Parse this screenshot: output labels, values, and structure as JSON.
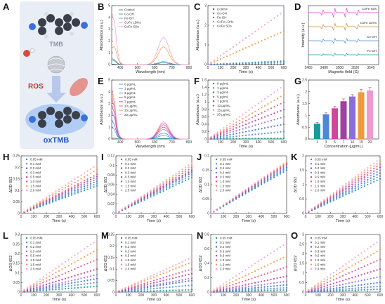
{
  "panel_a": {
    "tmb_label": "TMB",
    "ros_label": "ROS",
    "oxtmb_label": "oxTMB"
  },
  "panel_letters": [
    "A",
    "B",
    "C",
    "D",
    "E",
    "F",
    "G",
    "H",
    "I",
    "J",
    "K",
    "L",
    "M",
    "N",
    "O"
  ],
  "colors": {
    "four_series": [
      "#1a9a9a",
      "#4c88d8",
      "#f29a3a",
      "#f09ad0"
    ],
    "eight_series": [
      "#1a9a9a",
      "#4c88d8",
      "#3a6fd0",
      "#8a6fd8",
      "#c03a90",
      "#e0508f",
      "#f29a3a",
      "#f0a0d8"
    ],
    "g_bars": [
      "#1a9a9a",
      "#4c88d8",
      "#d0489a",
      "#a040a0",
      "#8a6fd8",
      "#f29a3a",
      "#f09ad0"
    ],
    "esr_lines": [
      "#e040d0",
      "#d08a40",
      "#4c88d8",
      "#1a9a9a"
    ]
  },
  "chart_data": [
    {
      "panel": "B",
      "type": "line",
      "xlabel": "Wavelength (nm)",
      "ylabel": "Absorbance (a.u.)",
      "xlim": [
        350,
        800
      ],
      "ylim": [
        0,
        5
      ],
      "xticks": [
        400,
        500,
        600,
        700,
        800
      ],
      "yticks": [
        0,
        1,
        2,
        3,
        4,
        5
      ],
      "series": [
        {
          "name": "Control",
          "peak652": 0.02,
          "peak370": 0.05
        },
        {
          "name": "Co-OH",
          "peak652": 0.15,
          "peak370": 0.45
        },
        {
          "name": "Fe-OH",
          "peak652": 0.25,
          "peak370": 0.55
        },
        {
          "name": "CoFe LDHs",
          "peak652": 1.5,
          "peak370": 1.35
        },
        {
          "name": "CoFe SDs",
          "peak652": 2.3,
          "peak370": 4.6
        }
      ]
    },
    {
      "panel": "C",
      "type": "scatter",
      "xlabel": "Time (s)",
      "ylabel": "Absorbance (a.u.)",
      "xlim": [
        0,
        600
      ],
      "ylim": [
        0,
        3
      ],
      "xticks": [
        0,
        100,
        200,
        300,
        400,
        500,
        600
      ],
      "yticks": [
        0,
        1,
        2,
        3
      ],
      "series": [
        {
          "name": "Control",
          "end": 0.02
        },
        {
          "name": "Co-OH",
          "end": 0.18
        },
        {
          "name": "Fe-OH",
          "end": 0.12
        },
        {
          "name": "CoFe LDHs",
          "end": 1.7
        },
        {
          "name": "CoFe SDs",
          "end": 2.7
        }
      ]
    },
    {
      "panel": "D",
      "type": "line",
      "xlabel": "Magnetic field (G)",
      "ylabel": "Intensity (a.u.)",
      "xlim": [
        3460,
        3550
      ],
      "xticks": [
        3460,
        3480,
        3500,
        3520,
        3540
      ],
      "series": [
        {
          "name": "CoFe SDs"
        },
        {
          "name": "CoFe LDHs"
        },
        {
          "name": "Co-OH"
        },
        {
          "name": "Fe-OH"
        }
      ]
    },
    {
      "panel": "E",
      "type": "line",
      "xlabel": "Wavelength (nm)",
      "ylabel": "Absorbance (a.u.)",
      "xlim": [
        350,
        800
      ],
      "ylim": [
        0,
        5
      ],
      "xticks": [
        400,
        500,
        600,
        700,
        800
      ],
      "yticks": [
        0,
        1,
        2,
        3,
        4,
        5
      ],
      "series": [
        {
          "name": "0 μg/mL",
          "peak652": 0.05,
          "peak370": 0.1
        },
        {
          "name": "1 μg/mL",
          "peak652": 0.3,
          "peak370": 1.2
        },
        {
          "name": "3 μg/mL",
          "peak652": 0.5,
          "peak370": 1.8
        },
        {
          "name": "5 μg/mL",
          "peak652": 0.8,
          "peak370": 2.6
        },
        {
          "name": "7 μg/mL",
          "peak652": 1.0,
          "peak370": 3.2
        },
        {
          "name": "10 μg/mL",
          "peak652": 1.2,
          "peak370": 3.9
        },
        {
          "name": "15 μg/mL",
          "peak652": 1.35,
          "peak370": 4.4
        },
        {
          "name": "20 μg/mL",
          "peak652": 1.45,
          "peak370": 4.8
        }
      ]
    },
    {
      "panel": "F",
      "type": "scatter",
      "xlabel": "Time (s)",
      "ylabel": "Absorbance (a.u.)",
      "xlim": [
        0,
        600
      ],
      "ylim": [
        0,
        1.6
      ],
      "xticks": [
        0,
        100,
        200,
        300,
        400,
        500,
        600
      ],
      "yticks": [
        0,
        0.2,
        0.4,
        0.6,
        0.8,
        1.0,
        1.2,
        1.4,
        1.6
      ],
      "series": [
        {
          "name": "0 μg/mL",
          "end": 0.02
        },
        {
          "name": "1 μg/mL",
          "end": 0.2
        },
        {
          "name": "3 μg/mL",
          "end": 0.4
        },
        {
          "name": "5 μg/mL",
          "end": 0.6
        },
        {
          "name": "7 μg/mL",
          "end": 0.8
        },
        {
          "name": "10 μg/mL",
          "end": 1.0
        },
        {
          "name": "15 μg/mL",
          "end": 1.2
        },
        {
          "name": "20 μg/mL",
          "end": 1.45
        }
      ]
    },
    {
      "panel": "G",
      "type": "bar",
      "xlabel": "Concentration (μg/mL)",
      "ylabel": "Absorbance (a.u.)",
      "ylim": [
        0,
        2.5
      ],
      "yticks": [
        0,
        0.5,
        1.0,
        1.5,
        2.0,
        2.5
      ],
      "categories": [
        "1",
        "3",
        "5",
        "7",
        "10",
        "15",
        "20"
      ],
      "values": [
        0.65,
        1.05,
        1.3,
        1.6,
        1.8,
        1.98,
        2.06
      ],
      "errors": [
        0.05,
        0.06,
        0.08,
        0.1,
        0.08,
        0.12,
        0.12
      ]
    },
    {
      "panel": "H",
      "type": "scatter",
      "xlabel": "Time (s)",
      "ylabel": "ΔOD 652",
      "xlim": [
        0,
        600
      ],
      "ylim": [
        0,
        0.25
      ],
      "xticks": [
        0,
        100,
        200,
        300,
        400,
        500,
        600
      ],
      "yticks": [
        0,
        0.05,
        0.1,
        0.15,
        0.2,
        0.25
      ],
      "series": [
        {
          "name": "0.05 mM",
          "end": 0.12
        },
        {
          "name": "0.1 mM",
          "end": 0.13
        },
        {
          "name": "0.2 mM",
          "end": 0.14
        },
        {
          "name": "0.3 mM",
          "end": 0.15
        },
        {
          "name": "0.5 mM",
          "end": 0.16
        },
        {
          "name": "1.0 mM",
          "end": 0.17
        },
        {
          "name": "1.5 mM",
          "end": 0.19
        },
        {
          "name": "2.0 mM",
          "end": 0.21
        }
      ]
    },
    {
      "panel": "I",
      "type": "scatter",
      "xlabel": "Time (s)",
      "ylabel": "ΔOD 652",
      "xlim": [
        0,
        600
      ],
      "ylim": [
        0,
        0.12
      ],
      "xticks": [
        0,
        100,
        200,
        300,
        400,
        500,
        600
      ],
      "yticks": [
        0,
        0.02,
        0.04,
        0.06,
        0.08,
        0.1,
        0.12
      ],
      "series": [
        {
          "name": "0.05 mM",
          "end": 0.075
        },
        {
          "name": "0.1 mM",
          "end": 0.08
        },
        {
          "name": "0.2 mM",
          "end": 0.085
        },
        {
          "name": "0.3 mM",
          "end": 0.088
        },
        {
          "name": "0.5 mM",
          "end": 0.09
        },
        {
          "name": "1.0 mM",
          "end": 0.095
        },
        {
          "name": "1.5 mM",
          "end": 0.1
        },
        {
          "name": "2.0 mM",
          "end": 0.105
        }
      ]
    },
    {
      "panel": "J",
      "type": "scatter",
      "xlabel": "Time (s)",
      "ylabel": "ΔOD 652",
      "xlim": [
        0,
        600
      ],
      "ylim": [
        0,
        0.2
      ],
      "xticks": [
        0,
        100,
        200,
        300,
        400,
        500,
        600
      ],
      "yticks": [
        0,
        0.05,
        0.1,
        0.15,
        0.2
      ],
      "series": [
        {
          "name": "0.05 mM",
          "end": 0.15
        },
        {
          "name": "0.1 mM",
          "end": 0.155
        },
        {
          "name": "0.2 mM",
          "end": 0.16
        },
        {
          "name": "0.3 mM",
          "end": 0.165
        },
        {
          "name": "0.5 mM",
          "end": 0.17
        },
        {
          "name": "1.0 mM",
          "end": 0.175
        },
        {
          "name": "1.5 mM",
          "end": 0.178
        },
        {
          "name": "2.0 mM",
          "end": 0.18
        }
      ]
    },
    {
      "panel": "K",
      "type": "scatter",
      "xlabel": "Time (s)",
      "ylabel": "ΔOD 652",
      "xlim": [
        0,
        600
      ],
      "ylim": [
        0,
        2.0
      ],
      "xticks": [
        0,
        100,
        200,
        300,
        400,
        500,
        600
      ],
      "yticks": [
        0,
        0.5,
        1.0,
        1.5,
        2.0
      ],
      "series": [
        {
          "name": "0.05 mM",
          "end": 1.2
        },
        {
          "name": "0.1 mM",
          "end": 1.3
        },
        {
          "name": "0.2 mM",
          "end": 1.4
        },
        {
          "name": "0.3 mM",
          "end": 1.5
        },
        {
          "name": "0.5 mM",
          "end": 1.6
        },
        {
          "name": "1.0 mM",
          "end": 1.7
        },
        {
          "name": "1.5 mM",
          "end": 1.8
        },
        {
          "name": "2.0 mM",
          "end": 1.9
        }
      ]
    },
    {
      "panel": "L",
      "type": "scatter",
      "xlabel": "Time (s)",
      "ylabel": "ΔOD 652",
      "xlim": [
        0,
        600
      ],
      "ylim": [
        0,
        0.3
      ],
      "xticks": [
        0,
        100,
        200,
        300,
        400,
        500,
        600
      ],
      "yticks": [
        0,
        0.05,
        0.1,
        0.15,
        0.2,
        0.25,
        0.3
      ],
      "series": [
        {
          "name": "0.05 mM",
          "end": 0.03
        },
        {
          "name": "0.1 mM",
          "end": 0.05
        },
        {
          "name": "0.2 mM",
          "end": 0.07
        },
        {
          "name": "0.3 mM",
          "end": 0.09
        },
        {
          "name": "0.5 mM",
          "end": 0.12
        },
        {
          "name": "1.0 mM",
          "end": 0.17
        },
        {
          "name": "1.5 mM",
          "end": 0.22
        },
        {
          "name": "2.0 mM",
          "end": 0.27
        }
      ]
    },
    {
      "panel": "M",
      "type": "scatter",
      "xlabel": "Time (s)",
      "ylabel": "ΔOD 652",
      "xlim": [
        0,
        600
      ],
      "ylim": [
        0,
        0.25
      ],
      "xticks": [
        0,
        100,
        200,
        300,
        400,
        500,
        600
      ],
      "yticks": [
        0,
        0.05,
        0.1,
        0.15,
        0.2,
        0.25
      ],
      "series": [
        {
          "name": "0.05 mM",
          "end": 0.01
        },
        {
          "name": "0.1 mM",
          "end": 0.03
        },
        {
          "name": "0.2 mM",
          "end": 0.05
        },
        {
          "name": "0.3 mM",
          "end": 0.06
        },
        {
          "name": "0.5 mM",
          "end": 0.08
        },
        {
          "name": "1.0 mM",
          "end": 0.1
        },
        {
          "name": "1.5 mM",
          "end": 0.13
        },
        {
          "name": "2.0 mM",
          "end": 0.15
        }
      ]
    },
    {
      "panel": "N",
      "type": "scatter",
      "xlabel": "Time (s)",
      "ylabel": "ΔOD 652",
      "xlim": [
        0,
        600
      ],
      "ylim": [
        0,
        0.8
      ],
      "xticks": [
        0,
        100,
        200,
        300,
        400,
        500,
        600
      ],
      "yticks": [
        0,
        0.2,
        0.4,
        0.6,
        0.8
      ],
      "series": [
        {
          "name": "0.05 mM",
          "end": 0.03
        },
        {
          "name": "0.1 mM",
          "end": 0.06
        },
        {
          "name": "0.2 mM",
          "end": 0.1
        },
        {
          "name": "0.3 mM",
          "end": 0.15
        },
        {
          "name": "0.5 mM",
          "end": 0.22
        },
        {
          "name": "1.0 mM",
          "end": 0.35
        },
        {
          "name": "1.5 mM",
          "end": 0.5
        },
        {
          "name": "2.0 mM",
          "end": 0.68
        }
      ]
    },
    {
      "panel": "O",
      "type": "scatter",
      "xlabel": "Time (s)",
      "ylabel": "ΔOD 652",
      "xlim": [
        0,
        600
      ],
      "ylim": [
        0,
        3.0
      ],
      "xticks": [
        0,
        100,
        200,
        300,
        400,
        500,
        600
      ],
      "yticks": [
        0,
        0.5,
        1.0,
        1.5,
        2.0,
        2.5,
        3.0
      ],
      "series": [
        {
          "name": "0.05 mM",
          "end": 0.15
        },
        {
          "name": "0.1 mM",
          "end": 0.3
        },
        {
          "name": "0.2 mM",
          "end": 0.5
        },
        {
          "name": "0.3 mM",
          "end": 0.8
        },
        {
          "name": "0.5 mM",
          "end": 1.2
        },
        {
          "name": "1.0 mM",
          "end": 1.7
        },
        {
          "name": "1.5 mM",
          "end": 2.2
        },
        {
          "name": "2.0 mM",
          "end": 2.7
        }
      ]
    }
  ]
}
